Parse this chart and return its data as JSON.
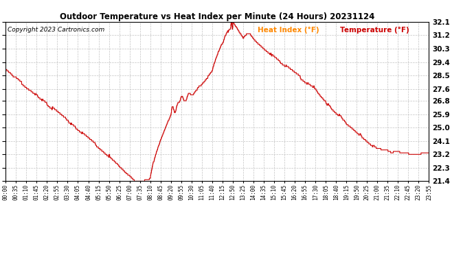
{
  "title": "Outdoor Temperature vs Heat Index per Minute (24 Hours) 20231124",
  "copyright": "Copyright 2023 Cartronics.com",
  "legend_heat_index": "Heat Index (°F)",
  "legend_temperature": "Temperature (°F)",
  "ylabel_right_ticks": [
    21.4,
    22.3,
    23.2,
    24.1,
    25.0,
    25.9,
    26.8,
    27.6,
    28.5,
    29.4,
    30.3,
    31.2,
    32.1
  ],
  "ylim": [
    21.4,
    32.1
  ],
  "line_color": "#cc0000",
  "background_color": "#ffffff",
  "grid_color": "#bbbbbb",
  "title_color": "#000000",
  "copyright_color": "#000000",
  "legend_heat_color": "#ff8800",
  "legend_temp_color": "#cc0000",
  "x_tick_labels": [
    "00:00",
    "00:35",
    "01:10",
    "01:45",
    "02:20",
    "02:55",
    "03:30",
    "04:05",
    "04:40",
    "05:15",
    "05:50",
    "06:25",
    "07:00",
    "07:35",
    "08:10",
    "08:45",
    "09:20",
    "09:55",
    "10:30",
    "11:05",
    "11:40",
    "12:15",
    "12:50",
    "13:25",
    "14:00",
    "14:35",
    "15:10",
    "15:45",
    "16:20",
    "16:55",
    "17:30",
    "18:05",
    "18:40",
    "19:15",
    "19:50",
    "20:25",
    "21:00",
    "21:35",
    "22:10",
    "22:45",
    "23:20",
    "23:55"
  ]
}
